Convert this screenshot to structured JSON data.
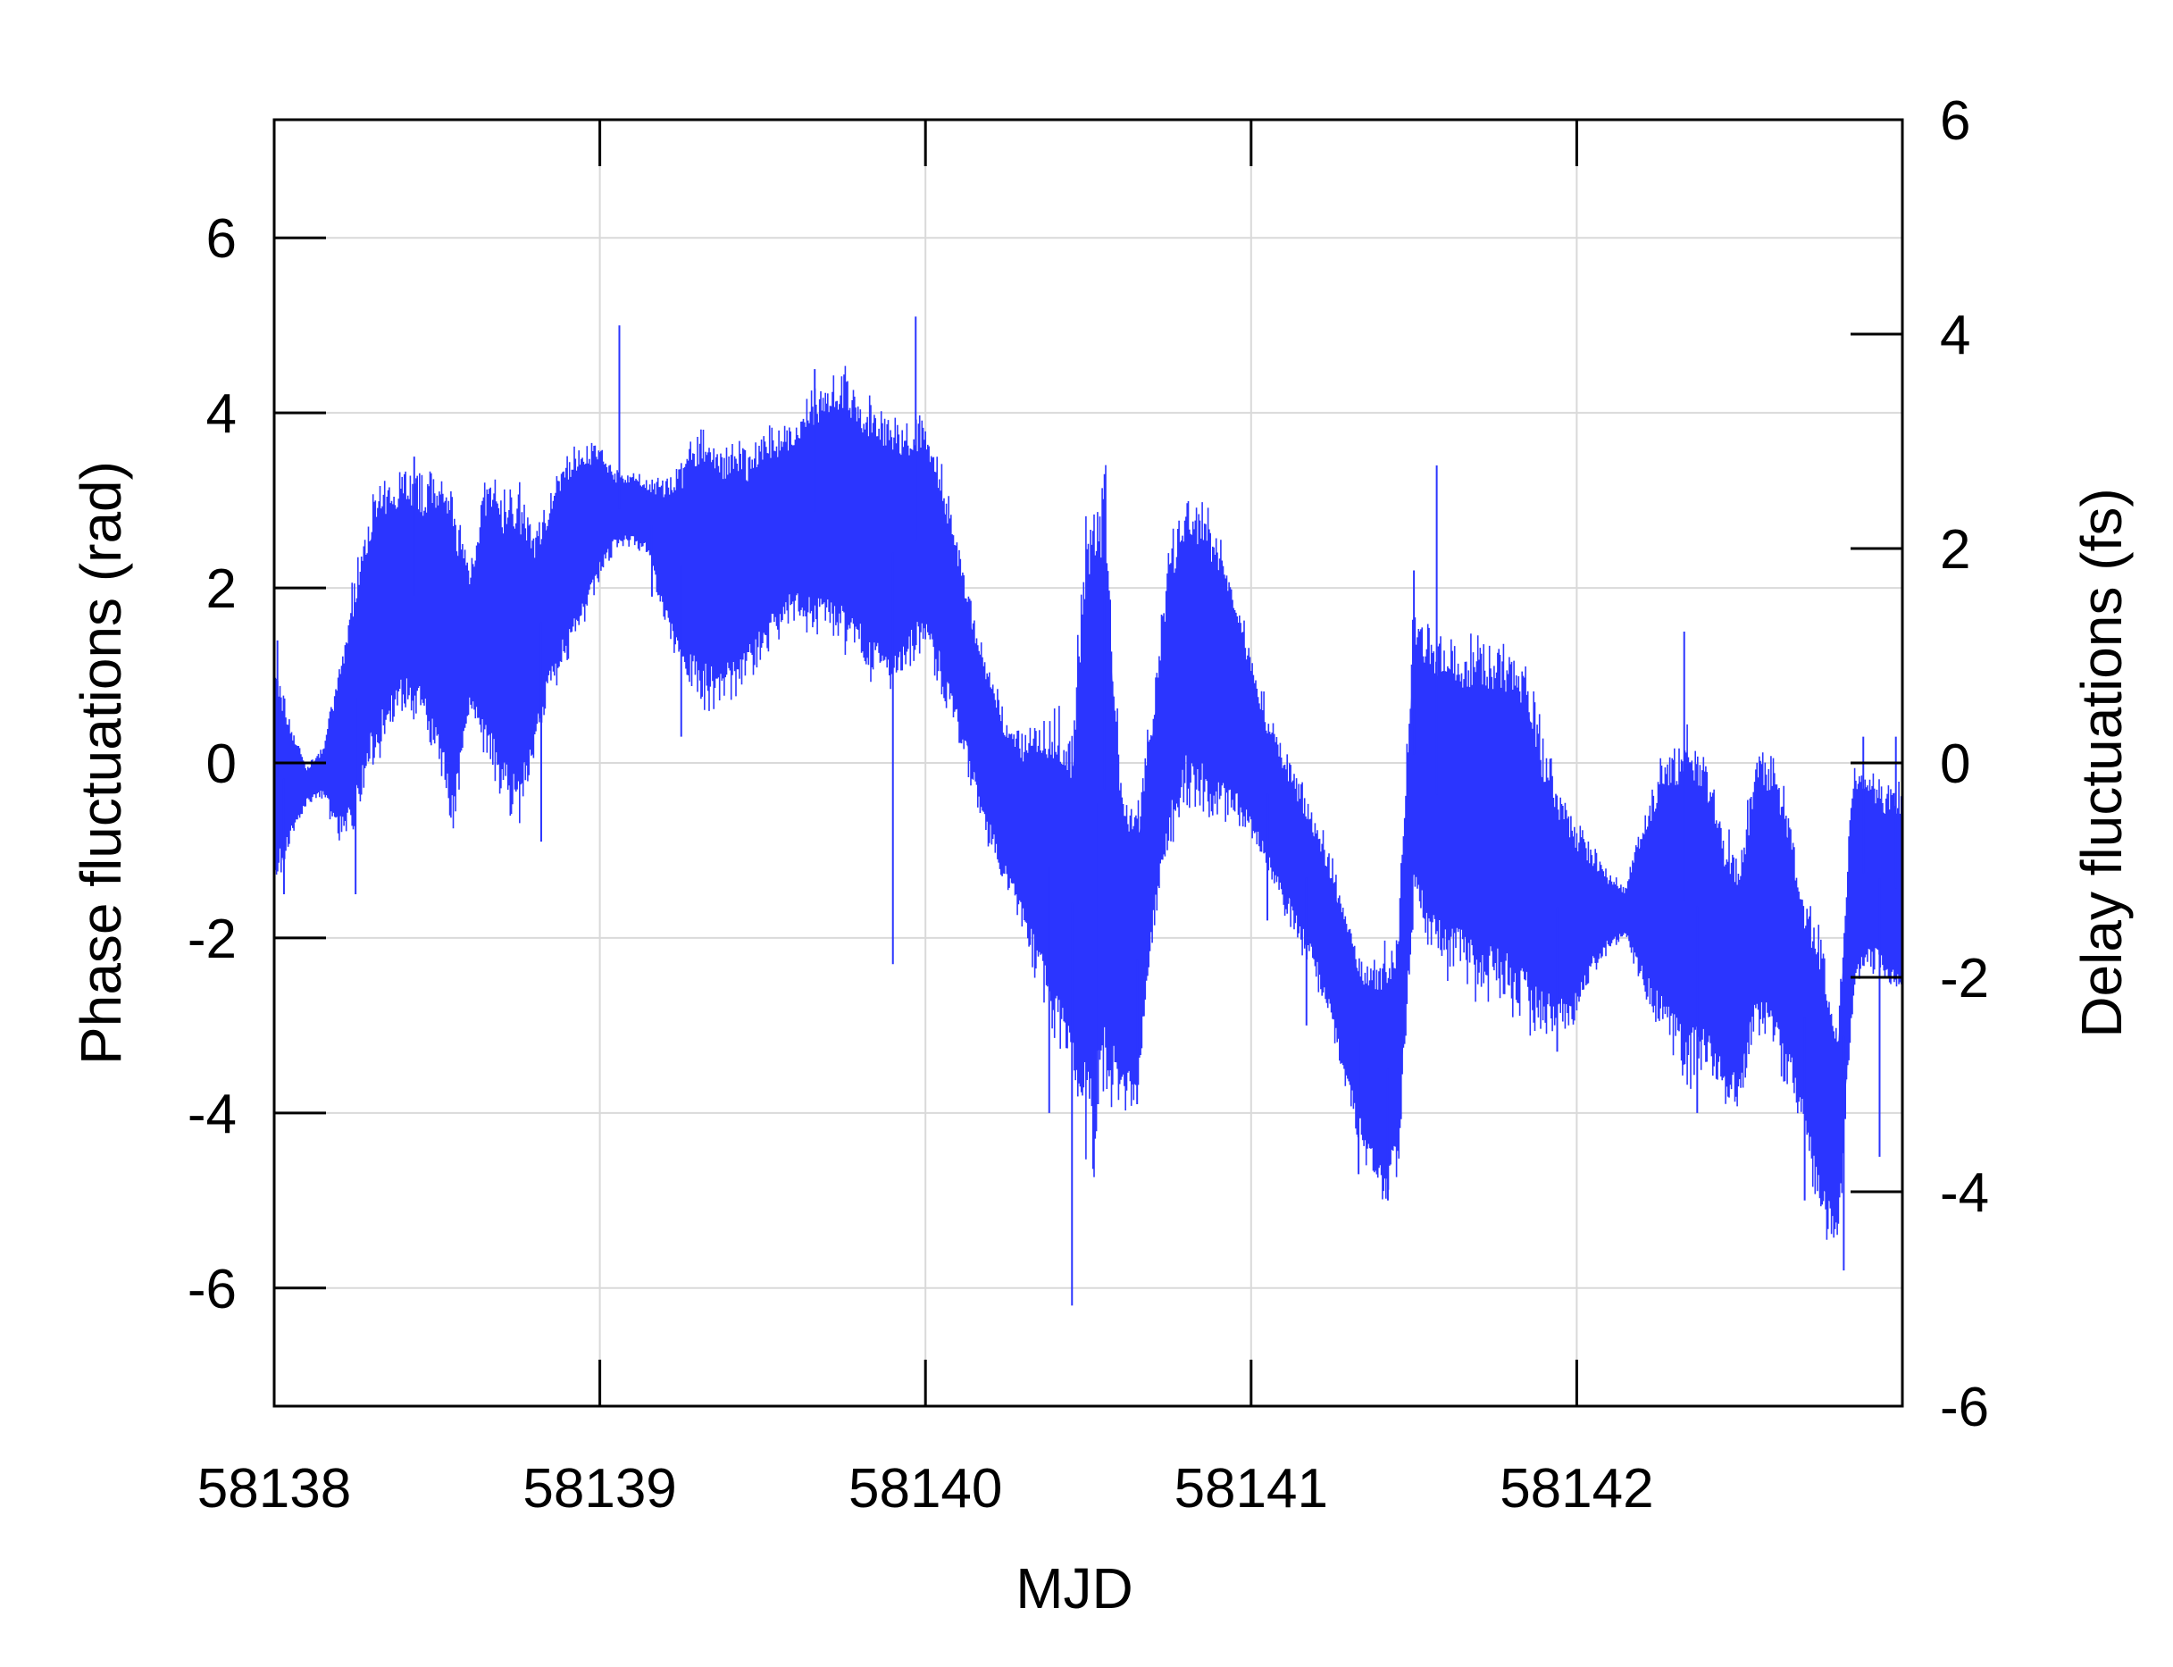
{
  "chart_data": {
    "type": "line",
    "xlabel": "MJD",
    "ylabel": "Phase fluctuations (rad)",
    "y2label": "Delay fluctuations (fs)",
    "xlim": [
      58138,
      58143
    ],
    "ylim": [
      -7.35,
      7.35
    ],
    "y2lim": [
      -6,
      6
    ],
    "x_ticks": [
      58138,
      58139,
      58140,
      58141,
      58142
    ],
    "y_ticks": [
      -6,
      -4,
      -2,
      0,
      2,
      4,
      6
    ],
    "y2_ticks": [
      -6,
      -4,
      -2,
      0,
      2,
      4,
      6
    ],
    "grid": true,
    "series": [
      {
        "color": "#2b35ff",
        "envelope": {
          "x": [
            58138.0,
            58138.05,
            58138.1,
            58138.15,
            58138.2,
            58138.25,
            58138.3,
            58138.35,
            58138.4,
            58138.45,
            58138.5,
            58138.55,
            58138.6,
            58138.65,
            58138.7,
            58138.75,
            58138.8,
            58138.85,
            58138.9,
            58138.95,
            58139.0,
            58139.05,
            58139.1,
            58139.15,
            58139.2,
            58139.25,
            58139.3,
            58139.35,
            58139.4,
            58139.45,
            58139.5,
            58139.55,
            58139.6,
            58139.65,
            58139.7,
            58139.75,
            58139.8,
            58139.85,
            58139.9,
            58139.95,
            58140.0,
            58140.05,
            58140.1,
            58140.15,
            58140.2,
            58140.25,
            58140.3,
            58140.35,
            58140.4,
            58140.45,
            58140.5,
            58140.55,
            58140.6,
            58140.65,
            58140.7,
            58140.75,
            58140.8,
            58140.85,
            58140.9,
            58140.95,
            58141.0,
            58141.05,
            58141.1,
            58141.15,
            58141.2,
            58141.25,
            58141.3,
            58141.35,
            58141.4,
            58141.45,
            58141.5,
            58141.55,
            58141.6,
            58141.65,
            58141.7,
            58141.75,
            58141.8,
            58141.85,
            58141.9,
            58141.95,
            58142.0,
            58142.05,
            58142.1,
            58142.15,
            58142.2,
            58142.25,
            58142.3,
            58142.35,
            58142.4,
            58142.45,
            58142.5,
            58142.55,
            58142.6,
            58142.65,
            58142.7,
            58142.75,
            58142.8,
            58142.85,
            58142.9,
            58142.95,
            58143.0
          ],
          "upper": [
            0.8,
            0.3,
            -0.1,
            0.1,
            0.8,
            1.8,
            2.6,
            2.8,
            3.0,
            2.8,
            2.9,
            2.5,
            2.0,
            2.8,
            2.6,
            2.6,
            2.3,
            2.8,
            3.2,
            3.4,
            3.4,
            3.2,
            3.2,
            3.1,
            3.0,
            3.1,
            3.4,
            3.3,
            3.2,
            3.2,
            3.4,
            3.5,
            3.6,
            3.8,
            4.0,
            4.0,
            3.8,
            3.6,
            3.5,
            3.4,
            3.6,
            3.0,
            2.2,
            1.4,
            0.7,
            0.2,
            0.0,
            0.1,
            0.0,
            -0.2,
            2.0,
            2.4,
            -0.6,
            -1.0,
            0.4,
            2.0,
            2.5,
            2.4,
            2.2,
            1.6,
            1.0,
            0.3,
            -0.1,
            -0.5,
            -0.9,
            -1.4,
            -2.1,
            -2.6,
            -2.6,
            -2.4,
            1.4,
            1.0,
            0.9,
            0.8,
            0.9,
            0.8,
            0.8,
            0.6,
            -0.3,
            -0.7,
            -1.0,
            -1.2,
            -1.4,
            -1.5,
            -0.9,
            -0.5,
            -0.3,
            -0.2,
            -0.4,
            -1.2,
            -1.5,
            -0.4,
            -0.3,
            -0.9,
            -2.0,
            -2.4,
            -3.4,
            -0.3,
            -0.4,
            -0.6,
            -0.6
          ],
          "lower": [
            -1.1,
            -0.7,
            -0.4,
            -0.3,
            -0.6,
            -0.3,
            0.4,
            0.8,
            1.0,
            0.9,
            0.4,
            -0.2,
            0.8,
            0.5,
            0.1,
            -0.2,
            0.4,
            1.2,
            1.5,
            1.9,
            2.3,
            2.6,
            2.6,
            2.5,
            1.8,
            1.4,
            1.2,
            1.1,
            1.2,
            1.3,
            1.6,
            1.8,
            2.0,
            1.9,
            1.9,
            1.8,
            1.6,
            1.4,
            1.3,
            1.5,
            1.8,
            1.2,
            0.6,
            -0.1,
            -0.7,
            -1.2,
            -1.6,
            -2.1,
            -2.6,
            -3.0,
            -3.4,
            -3.0,
            -3.3,
            -3.5,
            -1.6,
            -0.4,
            0.1,
            0.0,
            -0.2,
            -0.3,
            -0.6,
            -1.0,
            -1.4,
            -1.8,
            -2.2,
            -2.8,
            -3.6,
            -4.2,
            -4.6,
            -4.3,
            -1.2,
            -1.6,
            -1.8,
            -1.9,
            -2.0,
            -2.1,
            -2.2,
            -2.4,
            -2.6,
            -2.7,
            -2.6,
            -2.2,
            -2.0,
            -1.9,
            -2.3,
            -2.6,
            -2.8,
            -3.0,
            -3.0,
            -3.4,
            -3.6,
            -2.6,
            -2.8,
            -3.2,
            -3.8,
            -4.8,
            -5.2,
            -2.4,
            -2.0,
            -2.2,
            -2.3
          ]
        },
        "spikes": [
          {
            "x": 58138.01,
            "y": 1.4
          },
          {
            "x": 58138.03,
            "y": -1.5
          },
          {
            "x": 58138.25,
            "y": -1.5
          },
          {
            "x": 58138.43,
            "y": 3.5
          },
          {
            "x": 58138.82,
            "y": -0.9
          },
          {
            "x": 58139.06,
            "y": 5.0
          },
          {
            "x": 58139.16,
            "y": 1.9
          },
          {
            "x": 58139.25,
            "y": 0.3
          },
          {
            "x": 58139.66,
            "y": 4.5
          },
          {
            "x": 58139.9,
            "y": -2.3
          },
          {
            "x": 58139.97,
            "y": 5.1
          },
          {
            "x": 58140.38,
            "y": -4.0
          },
          {
            "x": 58140.45,
            "y": -6.2
          },
          {
            "x": 58140.55,
            "y": 3.3
          },
          {
            "x": 58140.53,
            "y": -3.9
          },
          {
            "x": 58140.65,
            "y": -3.9
          },
          {
            "x": 58141.05,
            "y": -1.8
          },
          {
            "x": 58141.17,
            "y": -3.0
          },
          {
            "x": 58141.33,
            "y": -4.7
          },
          {
            "x": 58141.42,
            "y": -5.0
          },
          {
            "x": 58141.5,
            "y": 2.2
          },
          {
            "x": 58141.57,
            "y": 3.4
          },
          {
            "x": 58141.94,
            "y": -3.3
          },
          {
            "x": 58142.33,
            "y": 1.5
          },
          {
            "x": 58142.37,
            "y": -4.0
          },
          {
            "x": 58142.7,
            "y": -5.0
          },
          {
            "x": 58142.82,
            "y": -5.8
          },
          {
            "x": 58142.88,
            "y": 0.3
          },
          {
            "x": 58142.93,
            "y": -4.5
          },
          {
            "x": 58142.98,
            "y": 0.3
          }
        ]
      }
    ]
  }
}
